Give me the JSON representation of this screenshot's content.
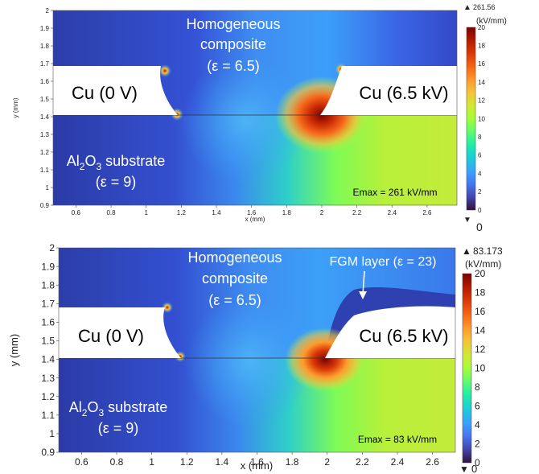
{
  "chart_data": [
    {
      "type": "heatmap",
      "title": "",
      "xlabel": "x (mm)",
      "ylabel": "y (mm)",
      "xlim": [
        0.47,
        2.77
      ],
      "ylim": [
        0.9,
        2.0
      ],
      "xticks": [
        "0.6",
        "0.8",
        "1",
        "1.2",
        "1.4",
        "1.6",
        "1.8",
        "2",
        "2.2",
        "2.4",
        "2.6"
      ],
      "yticks": [
        "0.9",
        "1",
        "1.1",
        "1.2",
        "1.3",
        "1.4",
        "1.5",
        "1.6",
        "1.7",
        "1.8",
        "1.9",
        "2"
      ],
      "colorbar": {
        "max_label": "261.56",
        "unit": "(kV/mm)",
        "ticks": [
          "0",
          "2",
          "4",
          "6",
          "8",
          "10",
          "12",
          "14",
          "16",
          "18",
          "20"
        ],
        "min_label": "0",
        "range": [
          0,
          20
        ]
      },
      "annotations": {
        "composite_line1": "Homogeneous",
        "composite_line2": "composite",
        "composite_eps": "(ε = 6.5)",
        "left_electrode": "Cu (0 V)",
        "right_electrode": "Cu (6.5 kV)",
        "substrate_line1_a": "Al",
        "substrate_line1_sub1": "2",
        "substrate_line1_b": "O",
        "substrate_line1_sub2": "3",
        "substrate_line1_c": " substrate",
        "substrate_eps": "(ε = 9)",
        "emax": "Emax = 261 kV/mm"
      },
      "interface_y": 1.4,
      "peak_field": 261,
      "fgm_layer": false
    },
    {
      "type": "heatmap",
      "title": "",
      "xlabel": "x (mm)",
      "ylabel": "y (mm)",
      "xlim": [
        0.47,
        2.73
      ],
      "ylim": [
        0.9,
        2.0
      ],
      "xticks": [
        "0.6",
        "0.8",
        "1",
        "1.2",
        "1.4",
        "1.6",
        "1.8",
        "2",
        "2.2",
        "2.4",
        "2.6"
      ],
      "yticks": [
        "0.9",
        "1",
        "1.1",
        "1.2",
        "1.3",
        "1.4",
        "1.5",
        "1.6",
        "1.7",
        "1.8",
        "1.9",
        "2"
      ],
      "colorbar": {
        "max_label": "83.173",
        "unit": "(kV/mm)",
        "ticks": [
          "0",
          "2",
          "4",
          "6",
          "8",
          "10",
          "12",
          "14",
          "16",
          "18",
          "20"
        ],
        "min_label": "0",
        "range": [
          0,
          20
        ]
      },
      "annotations": {
        "composite_line1": "Homogeneous",
        "composite_line2": "composite",
        "composite_eps": "(ε = 6.5)",
        "left_electrode": "Cu (0 V)",
        "right_electrode": "Cu (6.5 kV)",
        "substrate_line1_a": "Al",
        "substrate_line1_sub1": "2",
        "substrate_line1_b": "O",
        "substrate_line1_sub2": "3",
        "substrate_line1_c": " substrate",
        "substrate_eps": "(ε = 9)",
        "emax": "Emax = 83 kV/mm",
        "fgm_label": "FGM layer (ε = 23)"
      },
      "interface_y": 1.4,
      "peak_field": 83,
      "fgm_layer": true
    }
  ],
  "colors": {
    "colormap": [
      "#30123b",
      "#4145ab",
      "#4675ed",
      "#39a2fc",
      "#1bcfd4",
      "#24eca6",
      "#61fc6c",
      "#a4fc3b",
      "#d1e834",
      "#f3c63a",
      "#fe9b2d",
      "#f36315",
      "#d93806",
      "#b11901",
      "#7a0402"
    ],
    "electrode": "#ffffff"
  }
}
